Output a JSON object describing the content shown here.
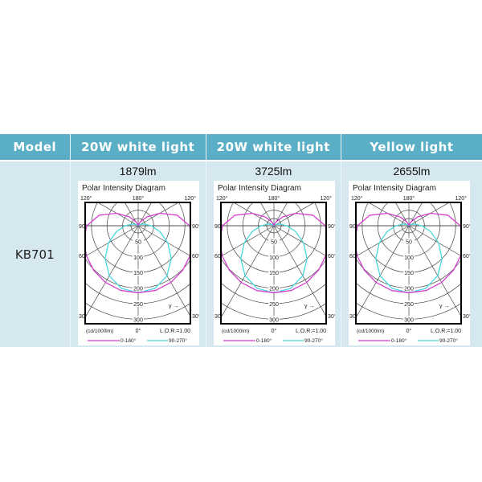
{
  "header": {
    "model": "Model",
    "columns": [
      "20W white light",
      "20W white light",
      "Yellow light"
    ]
  },
  "row": {
    "model": "KB701",
    "lumens": [
      "1879lm",
      "3725lm",
      "2655lm"
    ]
  },
  "diagram": {
    "title": "Polar Intensity Diagram",
    "top_labels": [
      "120°",
      "180°",
      "120°"
    ],
    "side_labels": [
      "90°",
      "60°",
      "30°"
    ],
    "bottom_label": "0°",
    "rings": [
      "50",
      "100",
      "150",
      "200",
      "250",
      "300"
    ],
    "unit": "(cd/1000lm)",
    "lor": "L.O.R.=1.00",
    "gamma": "γ",
    "legend": [
      {
        "label": "0-180°",
        "color": "#d63fd0"
      },
      {
        "label": "90-270°",
        "color": "#49d8de"
      }
    ]
  },
  "curves": {
    "angles": [
      0,
      15,
      30,
      45,
      60,
      75,
      90,
      105,
      120,
      135,
      150,
      165,
      180
    ],
    "c0_180": [
      215,
      215,
      210,
      202,
      192,
      180,
      165,
      130,
      80,
      40,
      15,
      5,
      0
    ],
    "c90_270": [
      215,
      208,
      185,
      150,
      110,
      72,
      42,
      20,
      8,
      0,
      0,
      0,
      0
    ]
  }
}
